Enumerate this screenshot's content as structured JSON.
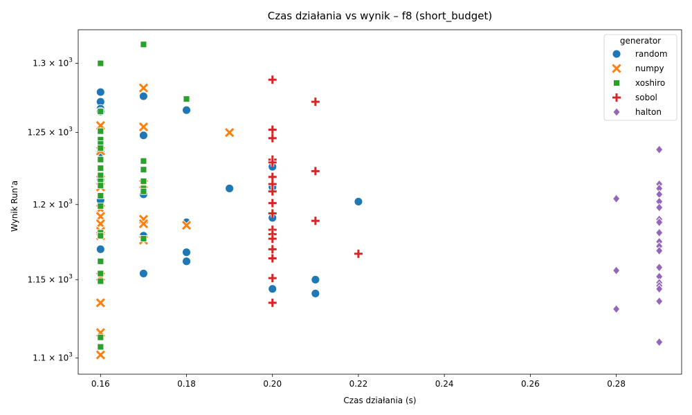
{
  "chart_data": {
    "type": "scatter",
    "title": "Czas działania vs wynik – f8 (short_budget)",
    "xlabel": "Czas działania (s)",
    "ylabel": "Wynik Run'a",
    "xlim": [
      0.1548,
      0.2952
    ],
    "ylim": [
      1090,
      1325
    ],
    "y_scale": "log",
    "grid": false,
    "legend_position": "top-right",
    "legend_title": "generator",
    "x_ticks": [
      {
        "value": 0.16,
        "label": "0.16"
      },
      {
        "value": 0.18,
        "label": "0.18"
      },
      {
        "value": 0.2,
        "label": "0.20"
      },
      {
        "value": 0.22,
        "label": "0.22"
      },
      {
        "value": 0.24,
        "label": "0.24"
      },
      {
        "value": 0.26,
        "label": "0.26"
      },
      {
        "value": 0.28,
        "label": "0.28"
      }
    ],
    "y_ticks": [
      {
        "value": 1100,
        "mantissa": "1.1",
        "exp": "3"
      },
      {
        "value": 1150,
        "mantissa": "1.15",
        "exp": "3"
      },
      {
        "value": 1200,
        "mantissa": "1.2",
        "exp": "3"
      },
      {
        "value": 1250,
        "mantissa": "1.25",
        "exp": "3"
      },
      {
        "value": 1300,
        "mantissa": "1.3",
        "exp": "3"
      }
    ],
    "series": [
      {
        "name": "random",
        "color": "#1f77b4",
        "marker": "circle",
        "points": [
          [
            0.16,
            1279
          ],
          [
            0.16,
            1272
          ],
          [
            0.16,
            1267
          ],
          [
            0.16,
            1265
          ],
          [
            0.16,
            1238
          ],
          [
            0.16,
            1236
          ],
          [
            0.16,
            1217
          ],
          [
            0.16,
            1203
          ],
          [
            0.16,
            1181
          ],
          [
            0.16,
            1170
          ],
          [
            0.17,
            1276
          ],
          [
            0.17,
            1248
          ],
          [
            0.17,
            1207
          ],
          [
            0.17,
            1179
          ],
          [
            0.17,
            1154
          ],
          [
            0.18,
            1266
          ],
          [
            0.18,
            1188
          ],
          [
            0.18,
            1168
          ],
          [
            0.18,
            1162
          ],
          [
            0.19,
            1211
          ],
          [
            0.2,
            1226
          ],
          [
            0.2,
            1212
          ],
          [
            0.2,
            1191
          ],
          [
            0.2,
            1144
          ],
          [
            0.21,
            1150
          ],
          [
            0.21,
            1141
          ],
          [
            0.22,
            1202
          ]
        ]
      },
      {
        "name": "numpy",
        "color": "#ff7f0e",
        "marker": "x",
        "points": [
          [
            0.16,
            1255
          ],
          [
            0.16,
            1237
          ],
          [
            0.16,
            1217
          ],
          [
            0.16,
            1212
          ],
          [
            0.16,
            1197
          ],
          [
            0.16,
            1192
          ],
          [
            0.16,
            1187
          ],
          [
            0.16,
            1182
          ],
          [
            0.16,
            1179
          ],
          [
            0.16,
            1152
          ],
          [
            0.16,
            1135
          ],
          [
            0.16,
            1116
          ],
          [
            0.16,
            1102
          ],
          [
            0.17,
            1282
          ],
          [
            0.17,
            1254
          ],
          [
            0.17,
            1214
          ],
          [
            0.17,
            1190
          ],
          [
            0.17,
            1187
          ],
          [
            0.17,
            1176
          ],
          [
            0.18,
            1186
          ],
          [
            0.19,
            1250
          ]
        ]
      },
      {
        "name": "xoshiro",
        "color": "#2ca02c",
        "marker": "square",
        "points": [
          [
            0.16,
            1300
          ],
          [
            0.16,
            1265
          ],
          [
            0.16,
            1251
          ],
          [
            0.16,
            1245
          ],
          [
            0.16,
            1242
          ],
          [
            0.16,
            1239
          ],
          [
            0.16,
            1231
          ],
          [
            0.16,
            1225
          ],
          [
            0.16,
            1220
          ],
          [
            0.16,
            1216
          ],
          [
            0.16,
            1213
          ],
          [
            0.16,
            1206
          ],
          [
            0.16,
            1199
          ],
          [
            0.16,
            1181
          ],
          [
            0.16,
            1179
          ],
          [
            0.16,
            1162
          ],
          [
            0.16,
            1154
          ],
          [
            0.16,
            1149
          ],
          [
            0.16,
            1113
          ],
          [
            0.16,
            1107
          ],
          [
            0.17,
            1314
          ],
          [
            0.17,
            1230
          ],
          [
            0.17,
            1224
          ],
          [
            0.17,
            1216
          ],
          [
            0.17,
            1211
          ],
          [
            0.17,
            1209
          ],
          [
            0.17,
            1177
          ],
          [
            0.18,
            1274
          ]
        ]
      },
      {
        "name": "sobol",
        "color": "#d62728",
        "marker": "plus",
        "points": [
          [
            0.2,
            1288
          ],
          [
            0.2,
            1252
          ],
          [
            0.2,
            1246
          ],
          [
            0.2,
            1231
          ],
          [
            0.2,
            1229
          ],
          [
            0.2,
            1219
          ],
          [
            0.2,
            1214
          ],
          [
            0.2,
            1209
          ],
          [
            0.2,
            1201
          ],
          [
            0.2,
            1194
          ],
          [
            0.2,
            1183
          ],
          [
            0.2,
            1180
          ],
          [
            0.2,
            1177
          ],
          [
            0.2,
            1170
          ],
          [
            0.2,
            1164
          ],
          [
            0.2,
            1151
          ],
          [
            0.2,
            1135
          ],
          [
            0.21,
            1272
          ],
          [
            0.21,
            1223
          ],
          [
            0.21,
            1189
          ],
          [
            0.22,
            1167
          ]
        ]
      },
      {
        "name": "halton",
        "color": "#9467bd",
        "marker": "diamond",
        "points": [
          [
            0.28,
            1204
          ],
          [
            0.28,
            1156
          ],
          [
            0.28,
            1131
          ],
          [
            0.29,
            1238
          ],
          [
            0.29,
            1214
          ],
          [
            0.29,
            1211
          ],
          [
            0.29,
            1207
          ],
          [
            0.29,
            1202
          ],
          [
            0.29,
            1198
          ],
          [
            0.29,
            1190
          ],
          [
            0.29,
            1188
          ],
          [
            0.29,
            1181
          ],
          [
            0.29,
            1175
          ],
          [
            0.29,
            1172
          ],
          [
            0.29,
            1169
          ],
          [
            0.29,
            1158
          ],
          [
            0.29,
            1152
          ],
          [
            0.29,
            1148
          ],
          [
            0.29,
            1146
          ],
          [
            0.29,
            1144
          ],
          [
            0.29,
            1136
          ],
          [
            0.29,
            1110
          ]
        ]
      }
    ]
  }
}
